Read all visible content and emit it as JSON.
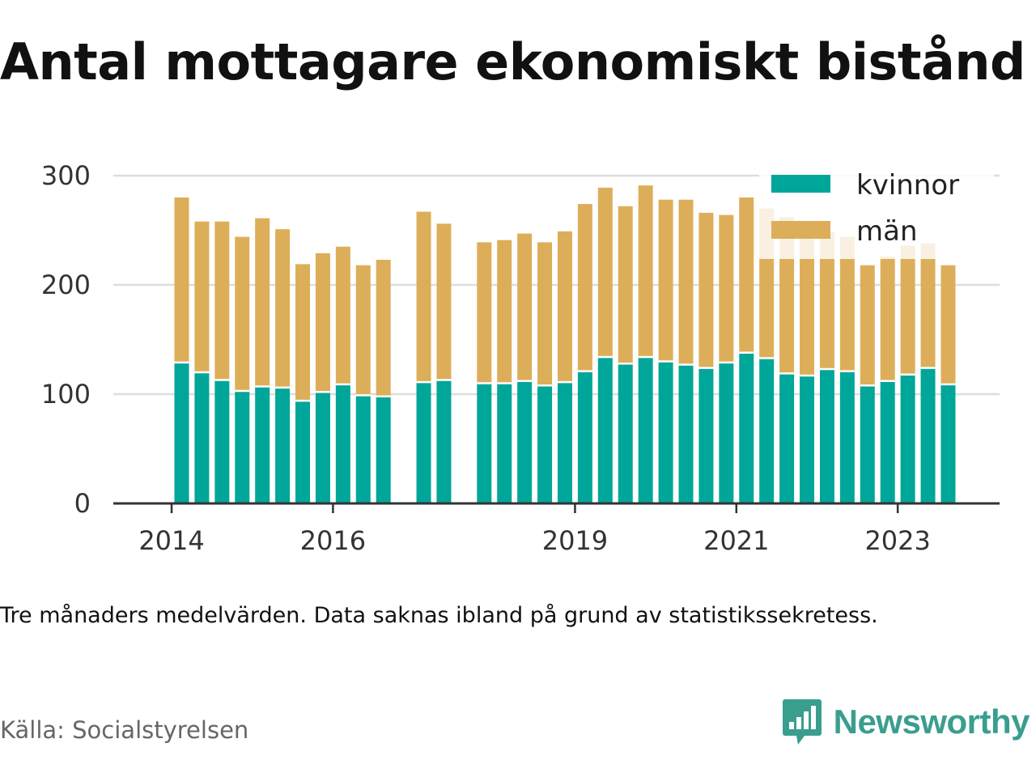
{
  "title": "Antal mottagare ekonomiskt bistånd",
  "note": "Tre månaders medelvärden. Data saknas ibland på grund av statistikssekretess.",
  "source": "Källa: Socialstyrelsen",
  "brand": {
    "name": "Newsworthy",
    "icon": "newsworthy-logo-icon",
    "color": "#3a9e8f"
  },
  "colors": {
    "kvinnor": "#00a699",
    "man": "#ddae59",
    "grid": "#dddddd",
    "axis": "#333333"
  },
  "chart_data": {
    "type": "bar",
    "stacked": true,
    "x_tick_labels": [
      "2014",
      "2016",
      "2019",
      "2021",
      "2023"
    ],
    "ylim": [
      0,
      300
    ],
    "y_ticks": [
      "0",
      "100",
      "200",
      "300"
    ],
    "grid": true,
    "legend_position": "top-right",
    "series": [
      {
        "name": "kvinnor",
        "color": "#00a699"
      },
      {
        "name": "män",
        "color": "#ddae59"
      }
    ],
    "quarters": [
      {
        "period": "2014 Q2",
        "kvinnor": 129,
        "total": 280
      },
      {
        "period": "2014 Q3",
        "kvinnor": 120,
        "total": 258
      },
      {
        "period": "2014 Q4",
        "kvinnor": 113,
        "total": 258
      },
      {
        "period": "2015 Q1",
        "kvinnor": 103,
        "total": 244
      },
      {
        "period": "2015 Q2",
        "kvinnor": 107,
        "total": 261
      },
      {
        "period": "2015 Q3",
        "kvinnor": 106,
        "total": 251
      },
      {
        "period": "2015 Q4",
        "kvinnor": 94,
        "total": 219
      },
      {
        "period": "2016 Q1",
        "kvinnor": 102,
        "total": 229
      },
      {
        "period": "2016 Q2",
        "kvinnor": 109,
        "total": 235
      },
      {
        "period": "2016 Q3",
        "kvinnor": 99,
        "total": 218
      },
      {
        "period": "2016 Q4",
        "kvinnor": 98,
        "total": 223
      },
      {
        "period": "2017 Q1",
        "kvinnor": null,
        "total": null
      },
      {
        "period": "2017 Q2",
        "kvinnor": 111,
        "total": 267
      },
      {
        "period": "2017 Q3",
        "kvinnor": 113,
        "total": 256
      },
      {
        "period": "2017 Q4",
        "kvinnor": null,
        "total": null
      },
      {
        "period": "2018 Q1",
        "kvinnor": 110,
        "total": 239
      },
      {
        "period": "2018 Q2",
        "kvinnor": 110,
        "total": 241
      },
      {
        "period": "2018 Q3",
        "kvinnor": 112,
        "total": 247
      },
      {
        "period": "2018 Q4",
        "kvinnor": 108,
        "total": 239
      },
      {
        "period": "2019 Q1",
        "kvinnor": 111,
        "total": 249
      },
      {
        "period": "2019 Q2",
        "kvinnor": 121,
        "total": 274
      },
      {
        "period": "2019 Q3",
        "kvinnor": 134,
        "total": 289
      },
      {
        "period": "2019 Q4",
        "kvinnor": 128,
        "total": 272
      },
      {
        "period": "2020 Q1",
        "kvinnor": 134,
        "total": 291
      },
      {
        "period": "2020 Q2",
        "kvinnor": 130,
        "total": 278
      },
      {
        "period": "2020 Q3",
        "kvinnor": 127,
        "total": 278
      },
      {
        "period": "2020 Q4",
        "kvinnor": 124,
        "total": 266
      },
      {
        "period": "2021 Q1",
        "kvinnor": 129,
        "total": 264
      },
      {
        "period": "2021 Q2",
        "kvinnor": 138,
        "total": 280
      },
      {
        "period": "2021 Q3",
        "kvinnor": 133,
        "total": 270
      },
      {
        "period": "2021 Q4",
        "kvinnor": 119,
        "total": 262
      },
      {
        "period": "2022 Q1",
        "kvinnor": 117,
        "total": 251
      },
      {
        "period": "2022 Q2",
        "kvinnor": 123,
        "total": 248
      },
      {
        "period": "2022 Q3",
        "kvinnor": 121,
        "total": 244
      },
      {
        "period": "2022 Q4",
        "kvinnor": 108,
        "total": 218
      },
      {
        "period": "2023 Q1",
        "kvinnor": 112,
        "total": 226
      },
      {
        "period": "2023 Q2",
        "kvinnor": 118,
        "total": 236
      },
      {
        "period": "2023 Q3",
        "kvinnor": 124,
        "total": 238
      },
      {
        "period": "2023 Q4",
        "kvinnor": 109,
        "total": 218
      }
    ]
  }
}
